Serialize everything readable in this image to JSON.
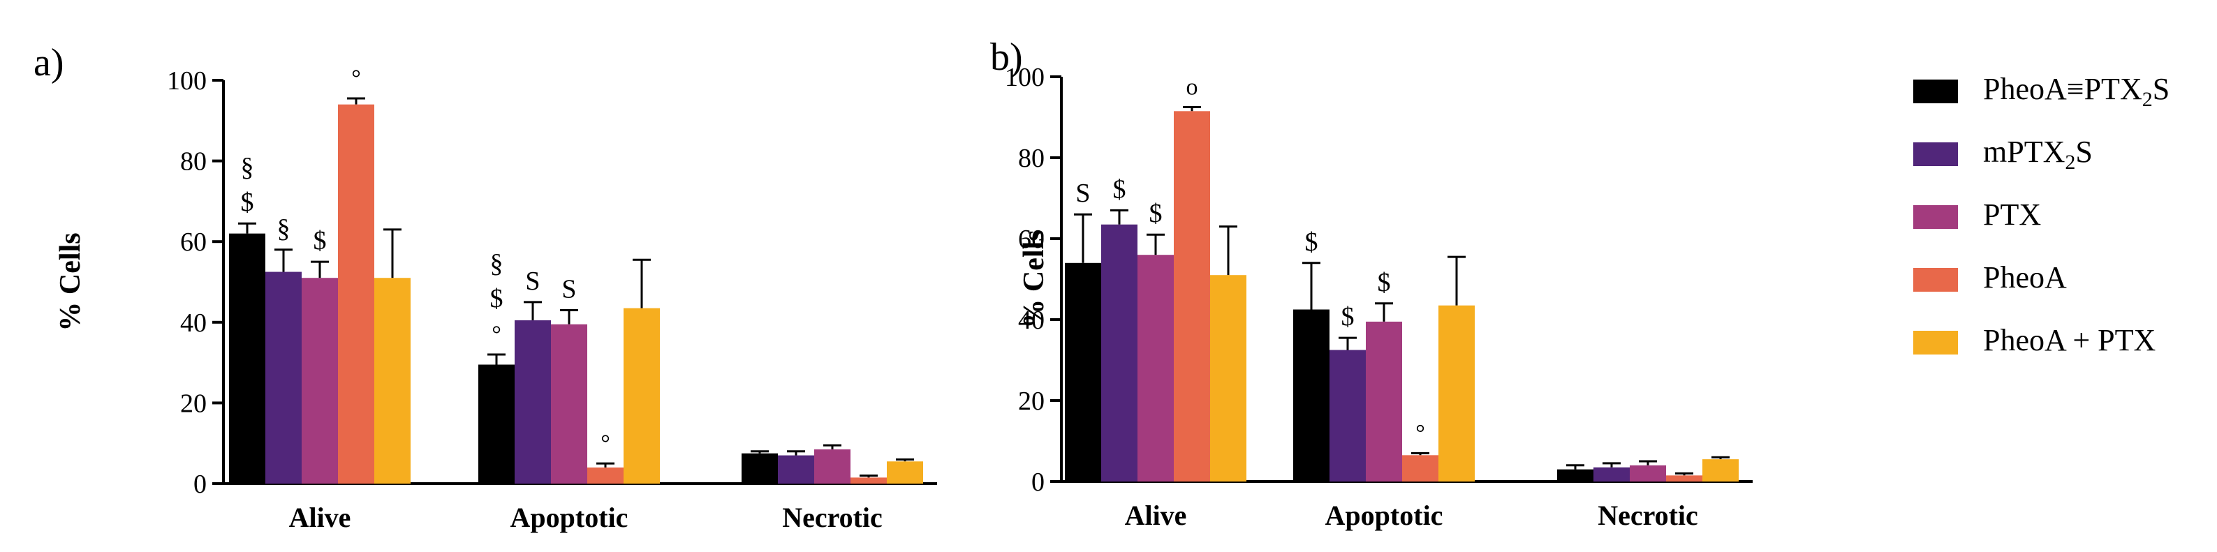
{
  "chart_data": [
    {
      "panel_label": "a)",
      "type": "bar",
      "ylabel": "% Cells",
      "ylim": [
        0,
        100
      ],
      "yticks": [
        "0",
        "20",
        "40",
        "60",
        "80",
        "100"
      ],
      "categories": [
        "Alive",
        "Apoptotic",
        "Necrotic"
      ],
      "series": [
        {
          "name": "PheoA≡PTX2S",
          "values": [
            62,
            29.5,
            7.5
          ],
          "errors": [
            2.5,
            2.5,
            0.5
          ]
        },
        {
          "name": "mPTX2S",
          "values": [
            52.5,
            40.5,
            7
          ],
          "errors": [
            5.5,
            4.5,
            1
          ]
        },
        {
          "name": "PTX",
          "values": [
            51,
            39.5,
            8.5
          ],
          "errors": [
            4,
            3.5,
            1
          ]
        },
        {
          "name": "PheoA",
          "values": [
            94,
            4,
            1.5
          ],
          "errors": [
            1.5,
            1,
            0.5
          ]
        },
        {
          "name": "PheoA + PTX",
          "values": [
            51,
            43.5,
            5.5
          ],
          "errors": [
            12,
            12,
            0.5
          ]
        }
      ],
      "annotations": [
        {
          "category": 0,
          "series": 0,
          "symbols": [
            "$",
            "§"
          ]
        },
        {
          "category": 0,
          "series": 1,
          "symbols": [
            "§"
          ]
        },
        {
          "category": 0,
          "series": 2,
          "symbols": [
            "$"
          ]
        },
        {
          "category": 0,
          "series": 3,
          "symbols": [
            "°"
          ]
        },
        {
          "category": 1,
          "series": 0,
          "symbols": [
            "°",
            "$",
            "§"
          ]
        },
        {
          "category": 1,
          "series": 1,
          "symbols": [
            "S"
          ]
        },
        {
          "category": 1,
          "series": 2,
          "symbols": [
            "S"
          ]
        },
        {
          "category": 1,
          "series": 3,
          "symbols": [
            "°"
          ]
        }
      ]
    },
    {
      "panel_label": "b)",
      "type": "bar",
      "ylabel": "% Cells",
      "ylim": [
        0,
        100
      ],
      "yticks": [
        "0",
        "20",
        "40",
        "60",
        "80",
        "100"
      ],
      "categories": [
        "Alive",
        "Apoptotic",
        "Necrotic"
      ],
      "series": [
        {
          "name": "PheoA≡PTX2S",
          "values": [
            54,
            42.5,
            3
          ],
          "errors": [
            12,
            11.5,
            1
          ]
        },
        {
          "name": "mPTX2S",
          "values": [
            63.5,
            32.5,
            3.5
          ],
          "errors": [
            3.5,
            3,
            1
          ]
        },
        {
          "name": "PTX",
          "values": [
            56,
            39.5,
            4
          ],
          "errors": [
            5,
            4.5,
            1
          ]
        },
        {
          "name": "PheoA",
          "values": [
            91.5,
            6.5,
            1.5
          ],
          "errors": [
            1,
            0.5,
            0.5
          ]
        },
        {
          "name": "PheoA + PTX",
          "values": [
            51,
            43.5,
            5.5
          ],
          "errors": [
            12,
            12,
            0.5
          ]
        }
      ],
      "annotations": [
        {
          "category": 0,
          "series": 0,
          "symbols": [
            "S"
          ]
        },
        {
          "category": 0,
          "series": 1,
          "symbols": [
            "$"
          ]
        },
        {
          "category": 0,
          "series": 2,
          "symbols": [
            "$"
          ]
        },
        {
          "category": 0,
          "series": 3,
          "symbols": [
            "o"
          ]
        },
        {
          "category": 1,
          "series": 0,
          "symbols": [
            "$"
          ]
        },
        {
          "category": 1,
          "series": 1,
          "symbols": [
            "$"
          ]
        },
        {
          "category": 1,
          "series": 2,
          "symbols": [
            "$"
          ]
        },
        {
          "category": 1,
          "series": 3,
          "symbols": [
            "°"
          ]
        }
      ]
    }
  ],
  "legend": {
    "items": [
      {
        "label": "PheoA≡PTX",
        "sub": "2",
        "suffix": "S",
        "color": "#000000"
      },
      {
        "label": "mPTX",
        "sub": "2",
        "suffix": "S",
        "color": "#51267a"
      },
      {
        "label": "PTX",
        "sub": "",
        "suffix": "",
        "color": "#a33b7e"
      },
      {
        "label": "PheoA",
        "sub": "",
        "suffix": "",
        "color": "#e8684a"
      },
      {
        "label": "PheoA + PTX",
        "sub": "",
        "suffix": "",
        "color": "#f6ae1f"
      }
    ]
  }
}
